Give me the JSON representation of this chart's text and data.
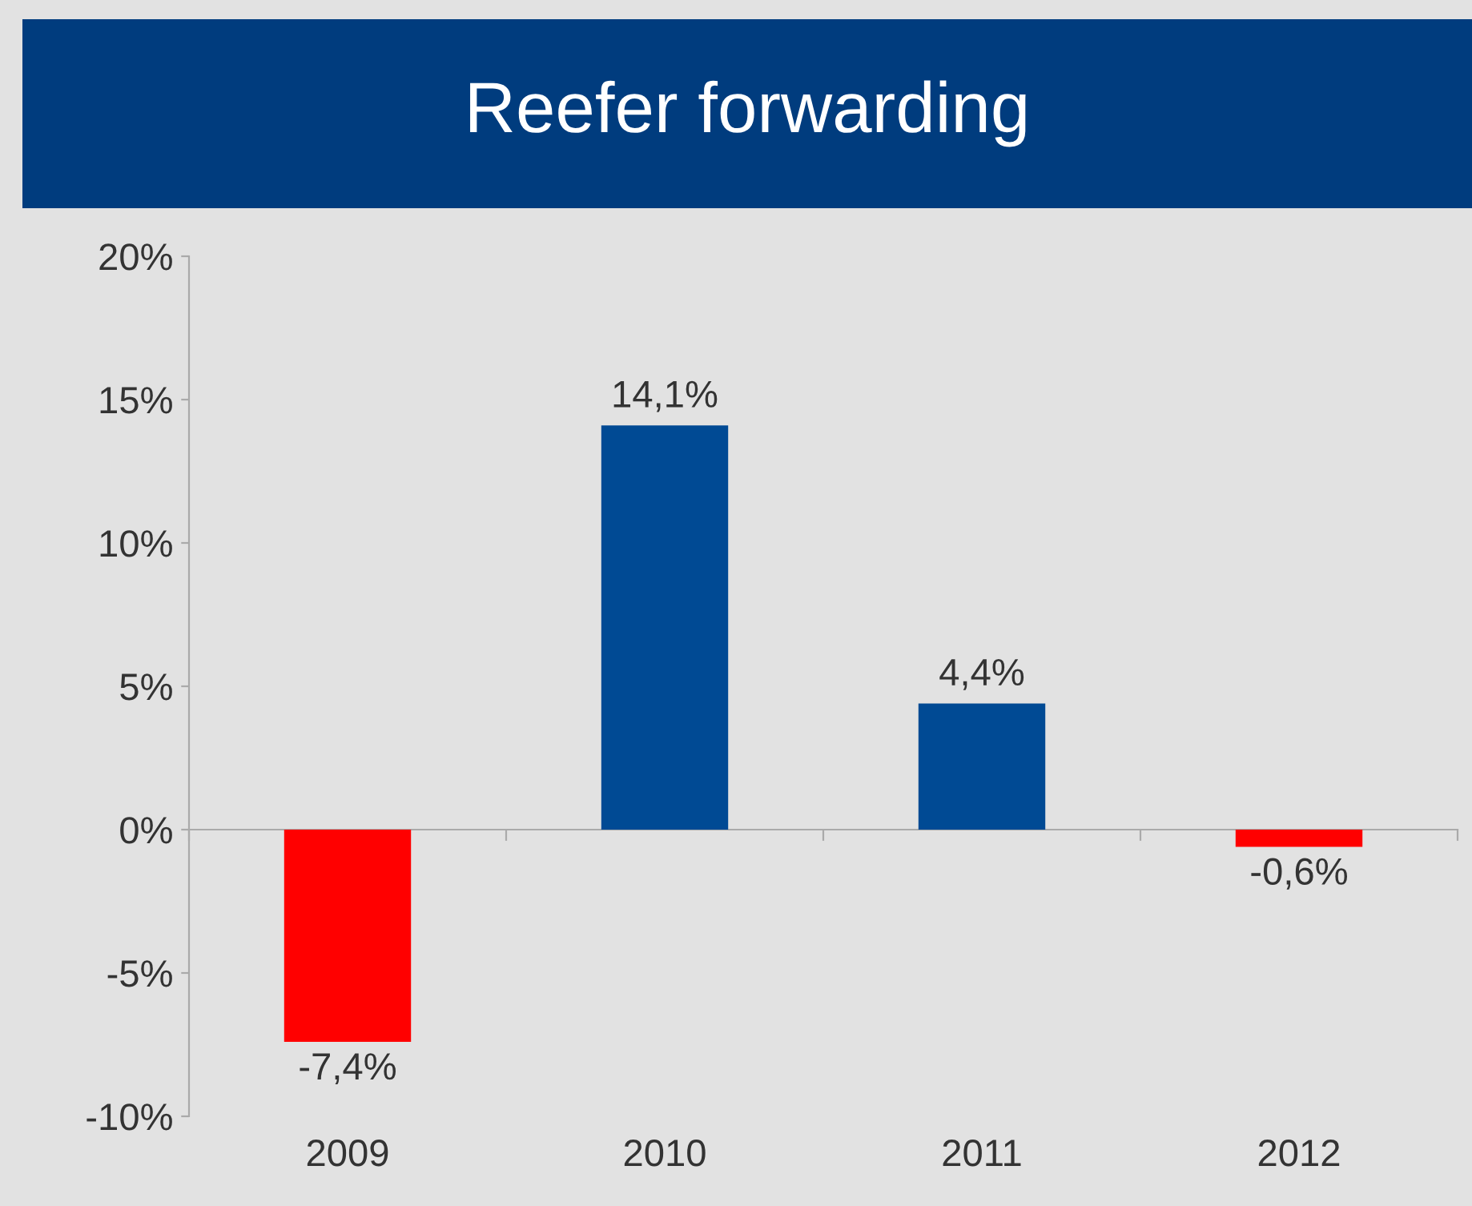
{
  "chart_data": {
    "type": "bar",
    "title": "Reefer forwarding",
    "categories": [
      "2009",
      "2010",
      "2011",
      "2012"
    ],
    "values": [
      -7.4,
      14.1,
      4.4,
      -0.6
    ],
    "colors": [
      "#ff0000",
      "#004a94",
      "#004a94",
      "#ff0000"
    ],
    "value_labels": [
      "-7,4%",
      "14,1%",
      "4,4%",
      "-0,6%"
    ],
    "ylim": [
      -10,
      20
    ],
    "yticks": [
      {
        "value": -10,
        "label": "-10%"
      },
      {
        "value": -5,
        "label": "-5%"
      },
      {
        "value": 0,
        "label": "0%"
      },
      {
        "value": 5,
        "label": "5%"
      },
      {
        "value": 10,
        "label": "10%"
      },
      {
        "value": 15,
        "label": "15%"
      },
      {
        "value": 20,
        "label": "20%"
      }
    ],
    "legend": false
  }
}
